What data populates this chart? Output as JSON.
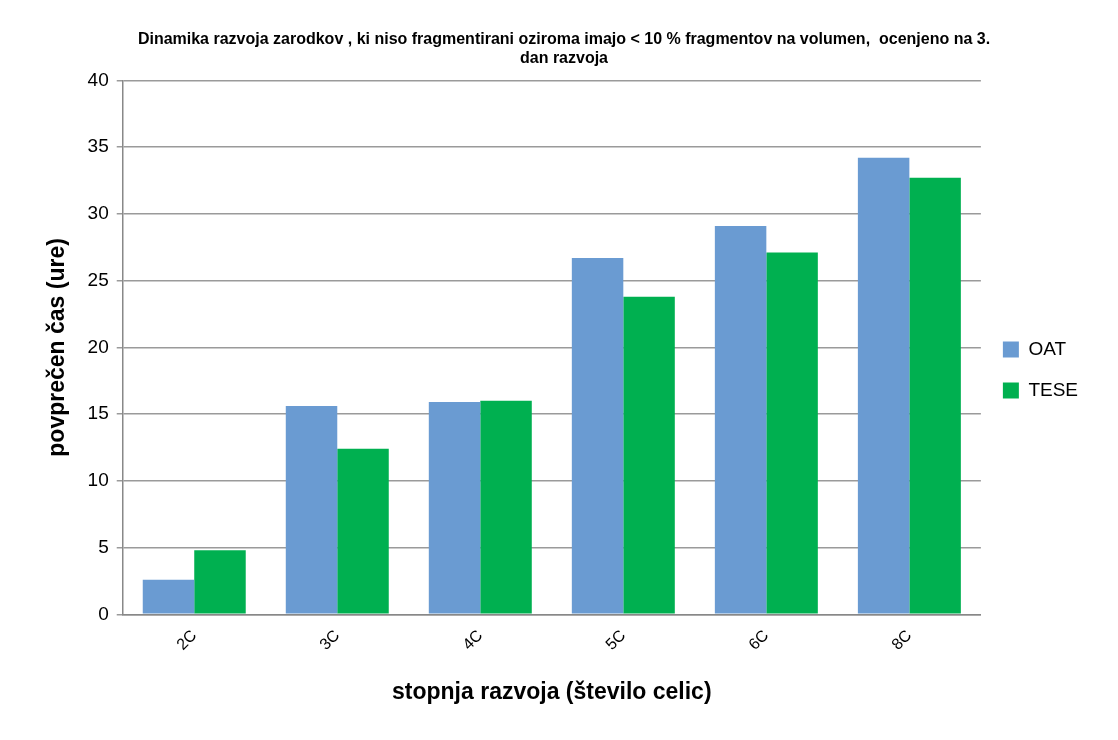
{
  "chart_data": {
    "type": "bar",
    "title": "Dinamika razvoja zarodkov , ki niso fragmentirani oziroma imajo < 10 % fragmentov na volumen,  ocenjeno na 3. dan razvoja",
    "xlabel": "stopnja razvoja (število celic)",
    "ylabel": "povprečen čas (ure)",
    "categories": [
      "2C",
      "3C",
      "4C",
      "5C",
      "6C",
      "8C"
    ],
    "series": [
      {
        "name": "OAT",
        "color": "#6a9bd2",
        "values": [
          2.6,
          15.6,
          15.9,
          26.7,
          29.1,
          34.2
        ]
      },
      {
        "name": "TESE",
        "color": "#00b050",
        "values": [
          4.8,
          12.4,
          16.0,
          23.8,
          27.1,
          32.7
        ]
      }
    ],
    "ylim": [
      0,
      40
    ],
    "yticks": [
      0,
      5,
      10,
      15,
      20,
      25,
      30,
      35,
      40
    ],
    "grid": "y",
    "legend": "right"
  }
}
